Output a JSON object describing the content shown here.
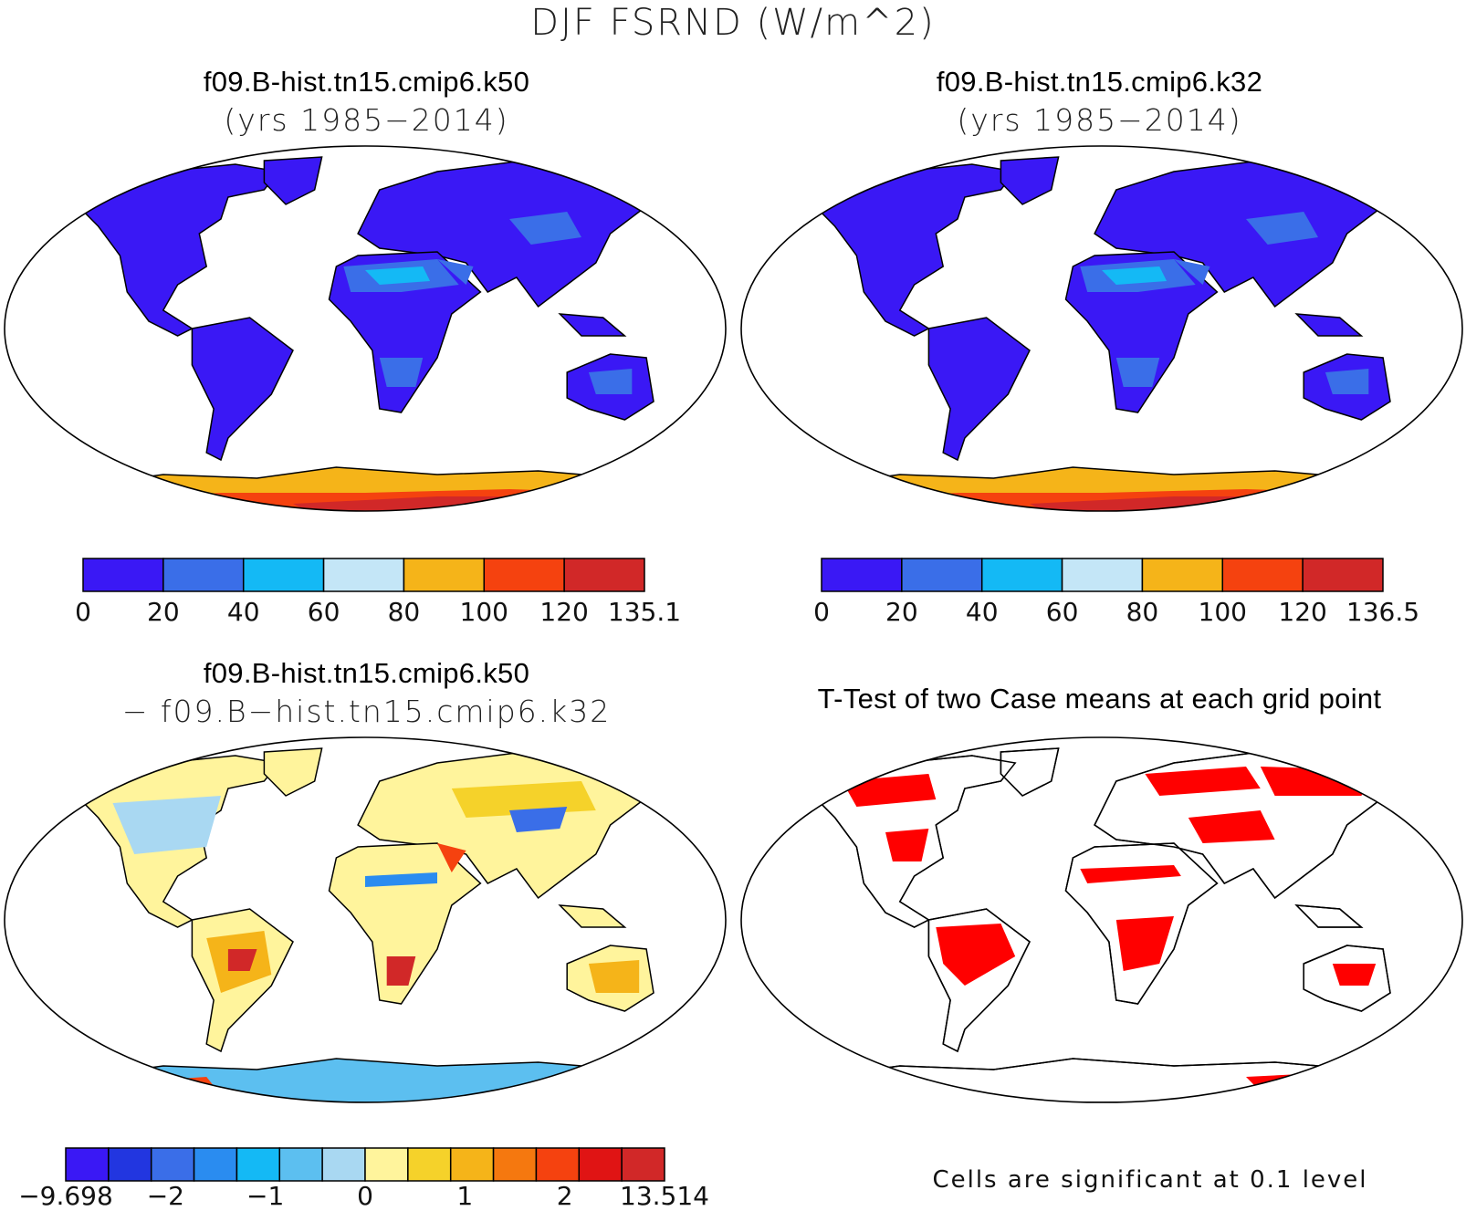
{
  "title": "DJF FSRND (W/m^2)",
  "panels": [
    {
      "title": "f09.B-hist.tn15.cmip6.k50",
      "subtitle": "(yrs 1985−2014)"
    },
    {
      "title": "f09.B-hist.tn15.cmip6.k32",
      "subtitle": "(yrs 1985−2014)"
    },
    {
      "title": "f09.B-hist.tn15.cmip6.k50",
      "subtitle": "− f09.B−hist.tn15.cmip6.k32"
    },
    {
      "title": "T-Test of two Case means at each grid point",
      "subtitle": ""
    }
  ],
  "colorbars": [
    {
      "labels": [
        "0",
        "20",
        "40",
        "60",
        "80",
        "100",
        "120",
        "135.1"
      ],
      "colors": [
        "#3a18f5",
        "#3a6ee8",
        "#14b9f5",
        "#c4e6f7",
        "#f5b419",
        "#f5420f",
        "#d12828"
      ]
    },
    {
      "labels": [
        "0",
        "20",
        "40",
        "60",
        "80",
        "100",
        "120",
        "136.5"
      ],
      "colors": [
        "#3a18f5",
        "#3a6ee8",
        "#14b9f5",
        "#c4e6f7",
        "#f5b419",
        "#f5420f",
        "#d12828"
      ]
    },
    {
      "labels": [
        "−9.698",
        "−2",
        "−1",
        "0",
        "1",
        "2",
        "13.514"
      ],
      "colors": [
        "#3a18f5",
        "#2236e0",
        "#3a6ee8",
        "#2a8cf0",
        "#14b9f5",
        "#5cbff0",
        "#a9d8f2",
        "#fff49c",
        "#f5d22a",
        "#f5b419",
        "#f5780f",
        "#f5420f",
        "#e01414",
        "#d12828"
      ]
    }
  ],
  "footnote": "Cells are significant at 0.1 level",
  "palette": {
    "ocean": "#ffffff",
    "coast": "#000000",
    "sig": "#ff0000"
  }
}
